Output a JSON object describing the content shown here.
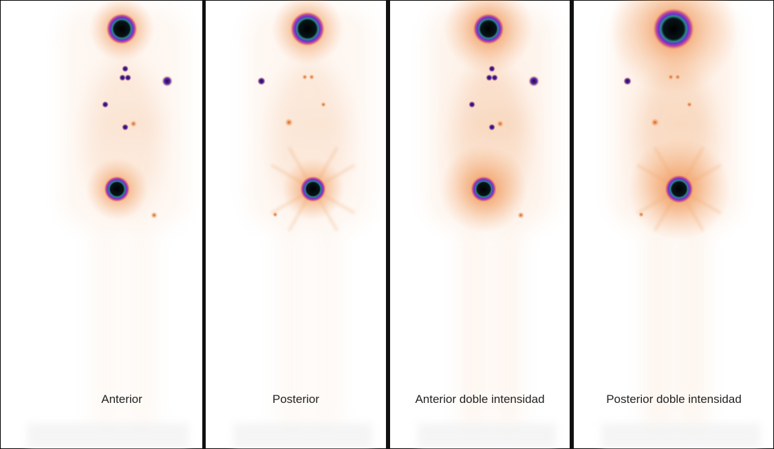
{
  "panels": [
    {
      "label": "Anterior"
    },
    {
      "label": "Posterior"
    },
    {
      "label": "Anterior doble intensidad"
    },
    {
      "label": "Posterior doble intensidad"
    }
  ]
}
